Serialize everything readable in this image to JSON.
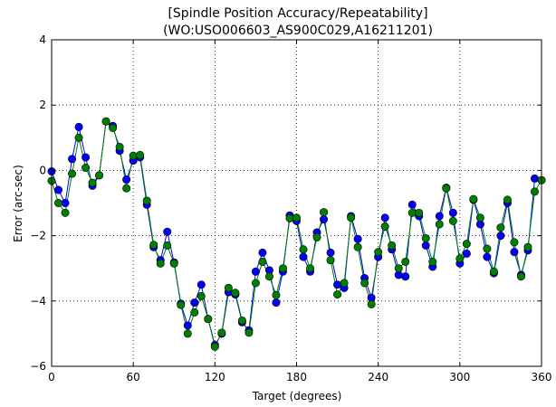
{
  "chart_data": {
    "type": "line",
    "title": "[Spindle Position Accuracy/Repeatability]",
    "subtitle": "(WO:USO006603_AS900C029,A16211201)",
    "xlabel": "Target (degrees)",
    "ylabel": "Error (arc-sec)",
    "xlim": [
      0,
      360
    ],
    "ylim": [
      -6,
      4
    ],
    "xticks": [
      0,
      60,
      120,
      180,
      240,
      300,
      360
    ],
    "xtick_labels": [
      "0",
      "60",
      "120",
      "180",
      "240",
      "300",
      "360"
    ],
    "yticks": [
      -6,
      -4,
      -2,
      0,
      2,
      4
    ],
    "ytick_labels": [
      "−6",
      "−4",
      "−2",
      "0",
      "2",
      "4"
    ],
    "grid": true,
    "grid_style": "dotted",
    "x": [
      0,
      5,
      10,
      15,
      20,
      25,
      30,
      35,
      40,
      45,
      50,
      55,
      60,
      65,
      70,
      75,
      80,
      85,
      90,
      95,
      100,
      105,
      110,
      115,
      120,
      125,
      130,
      135,
      140,
      145,
      150,
      155,
      160,
      165,
      170,
      175,
      180,
      185,
      190,
      195,
      200,
      205,
      210,
      215,
      220,
      225,
      230,
      235,
      240,
      245,
      250,
      255,
      260,
      265,
      270,
      275,
      280,
      285,
      290,
      295,
      300,
      305,
      310,
      315,
      320,
      325,
      330,
      335,
      340,
      345,
      350,
      355,
      360
    ],
    "series": [
      {
        "color": "#0000ff",
        "marker": "circle",
        "values": [
          -0.03,
          -0.6,
          -1.0,
          0.35,
          1.33,
          0.4,
          -0.47,
          -0.15,
          1.5,
          1.36,
          0.6,
          -0.28,
          0.3,
          0.4,
          -1.05,
          -2.35,
          -2.75,
          -1.88,
          -2.82,
          -4.08,
          -4.75,
          -4.05,
          -3.5,
          -4.55,
          -5.35,
          -5.0,
          -3.73,
          -3.8,
          -4.65,
          -4.9,
          -3.1,
          -2.52,
          -3.06,
          -4.05,
          -3.1,
          -1.38,
          -1.55,
          -2.65,
          -3.1,
          -1.9,
          -1.5,
          -2.52,
          -3.5,
          -3.6,
          -1.4,
          -2.1,
          -3.3,
          -3.9,
          -2.65,
          -1.45,
          -2.42,
          -3.2,
          -3.25,
          -1.05,
          -1.4,
          -2.3,
          -2.95,
          -1.4,
          -0.53,
          -1.3,
          -2.85,
          -2.55,
          -0.9,
          -1.65,
          -2.65,
          -3.15,
          -2.0,
          -1.0,
          -2.5,
          -3.2,
          -2.45,
          -0.25,
          -0.3
        ]
      },
      {
        "color": "#008000",
        "marker": "circle",
        "values": [
          -0.32,
          -1.0,
          -1.3,
          -0.1,
          1.0,
          0.08,
          -0.38,
          -0.15,
          1.5,
          1.3,
          0.72,
          -0.55,
          0.45,
          0.47,
          -0.93,
          -2.28,
          -2.85,
          -2.3,
          -2.85,
          -4.12,
          -5.0,
          -4.35,
          -3.85,
          -4.55,
          -5.4,
          -4.97,
          -3.6,
          -3.75,
          -4.6,
          -4.97,
          -3.45,
          -2.8,
          -3.25,
          -3.82,
          -3.0,
          -1.47,
          -1.45,
          -2.42,
          -3.0,
          -2.05,
          -1.28,
          -2.75,
          -3.8,
          -3.45,
          -1.45,
          -2.35,
          -3.45,
          -4.1,
          -2.5,
          -1.72,
          -2.3,
          -3.0,
          -2.8,
          -1.3,
          -1.3,
          -2.08,
          -2.8,
          -1.65,
          -0.55,
          -1.55,
          -2.7,
          -2.25,
          -0.88,
          -1.45,
          -2.4,
          -3.1,
          -1.75,
          -0.9,
          -2.2,
          -3.25,
          -2.35,
          -0.65,
          -0.3
        ]
      }
    ]
  }
}
